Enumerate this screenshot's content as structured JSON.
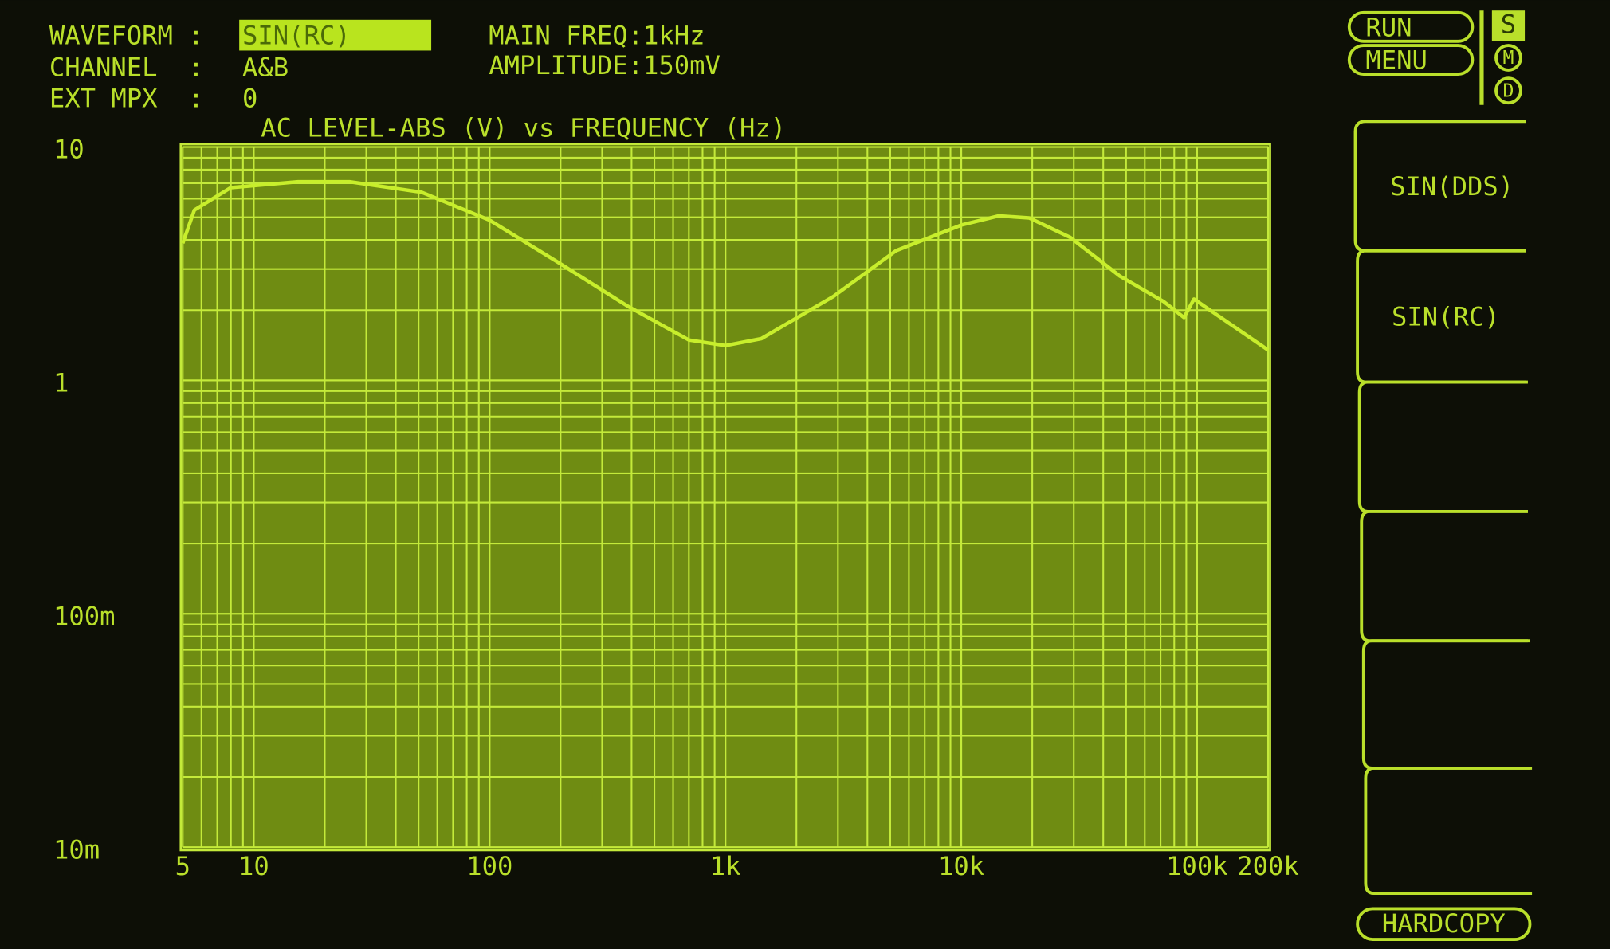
{
  "header": {
    "fields": [
      {
        "label": "WAVEFORM :",
        "value": "SIN(RC)"
      },
      {
        "label": "CHANNEL  :",
        "value": "A&B"
      },
      {
        "label": "EXT MPX  :",
        "value": "0"
      }
    ],
    "main_freq": "MAIN FREQ:1kHz",
    "amplitude": "AMPLITUDE:150mV"
  },
  "status": {
    "run": "RUN",
    "menu": "MENU",
    "indicators": [
      "S",
      "M",
      "D"
    ]
  },
  "softkeys": [
    "SIN(DDS)",
    "SIN(RC)"
  ],
  "hardcopy": "HARDCOPY",
  "chart_data": {
    "type": "line",
    "title": "AC LEVEL-ABS (V) vs FREQUENCY (Hz)",
    "x": [
      5,
      5.6,
      8,
      15.4,
      25.5,
      51.5,
      100,
      190,
      385,
      700,
      1000,
      1420,
      2870,
      5300,
      10000,
      14400,
      19400,
      29000,
      47000,
      72000,
      88000,
      97000,
      130000,
      200000
    ],
    "series": [
      {
        "name": "A&B",
        "color": "#c8ee2c",
        "values": [
          3.87,
          5.37,
          6.7,
          7.1,
          7.1,
          6.4,
          4.86,
          3.26,
          2.08,
          1.49,
          1.41,
          1.51,
          2.29,
          3.6,
          4.63,
          5.07,
          4.97,
          4.1,
          2.8,
          2.18,
          1.86,
          2.23,
          1.82,
          1.35
        ]
      }
    ],
    "xlim": [
      5,
      200000
    ],
    "ylim": [
      0.01,
      10
    ],
    "xscale": "log",
    "yscale": "log",
    "xticks": [
      5,
      10,
      100,
      {
        "value": 1000,
        "label": "1k"
      },
      {
        "value": 10000,
        "label": "10k"
      },
      {
        "value": 100000,
        "label": "100k"
      },
      {
        "value": 200000,
        "label": "200k"
      }
    ],
    "yticks": [
      {
        "value": 0.01,
        "label": "10m"
      },
      {
        "value": 0.1,
        "label": "100m"
      },
      1,
      10
    ],
    "grid": true,
    "minor_grid": true
  }
}
